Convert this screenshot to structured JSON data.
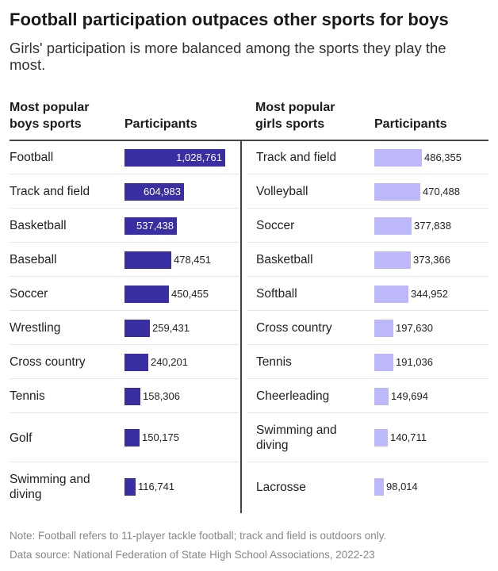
{
  "title": "Football participation outpaces other sports for boys",
  "subtitle": "Girls' participation is more balanced among the sports they play the most.",
  "note": "Note: Football refers to 11-player tackle football; track and field is outdoors only.",
  "source": "Data source: National Federation of State High School Associations, 2022-23",
  "colors": {
    "boys": "#3a2ea3",
    "girls": "#bcb8fa"
  },
  "chart_data": [
    {
      "type": "table",
      "title": "",
      "columns": [
        "Most popular boys sports",
        "Participants"
      ],
      "categories": [
        "Football",
        "Track and field",
        "Basketball",
        "Baseball",
        "Soccer",
        "Wrestling",
        "Cross country",
        "Tennis",
        "Golf",
        "Swimming and diving"
      ],
      "values": [
        1028761,
        604983,
        537438,
        478451,
        450455,
        259431,
        240201,
        158306,
        150175,
        116741
      ],
      "labels": [
        "1,028,761",
        "604,983",
        "537,438",
        "478,451",
        "450,455",
        "259,431",
        "240,201",
        "158,306",
        "150,175",
        "116,741"
      ]
    },
    {
      "type": "table",
      "title": "",
      "columns": [
        "Most popular girls sports",
        "Participants"
      ],
      "categories": [
        "Track and field",
        "Volleyball",
        "Soccer",
        "Basketball",
        "Softball",
        "Cross country",
        "Tennis",
        "Cheerleading",
        "Swimming and diving",
        "Lacrosse"
      ],
      "values": [
        486355,
        470488,
        377838,
        373366,
        344952,
        197630,
        191036,
        149694,
        140711,
        98014
      ],
      "labels": [
        "486,355",
        "470,488",
        "377,838",
        "373,366",
        "344,952",
        "197,630",
        "191,036",
        "149,694",
        "140,711",
        "98,014"
      ]
    }
  ]
}
